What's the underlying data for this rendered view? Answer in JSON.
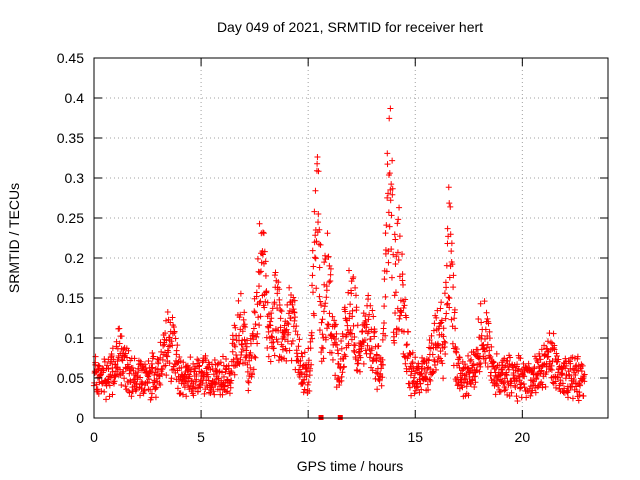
{
  "chart_data": {
    "type": "scatter",
    "title": "Day 049 of 2021, SRMTID for receiver hert",
    "xlabel": "GPS time / hours",
    "ylabel": "SRMTID / TECUs",
    "xlim": [
      0,
      24
    ],
    "ylim": [
      0,
      0.45
    ],
    "x_ticks": [
      "0",
      "5",
      "10",
      "15",
      "20"
    ],
    "x_tick_values": [
      0,
      5,
      10,
      15,
      20
    ],
    "y_ticks": [
      "0",
      "0.05",
      "0.1",
      "0.15",
      "0.2",
      "0.25",
      "0.3",
      "0.35",
      "0.4",
      "0.45"
    ],
    "y_tick_values": [
      0,
      0.05,
      0.1,
      0.15,
      0.2,
      0.25,
      0.3,
      0.35,
      0.4,
      0.45
    ],
    "grid": true,
    "marker": "plus",
    "series_color": "#ff0000",
    "x_range_of_points": [
      0,
      22.9
    ],
    "baseline_level": 0.055,
    "peaks": [
      {
        "center": 1.2,
        "max": 0.11
      },
      {
        "center": 3.5,
        "max": 0.13
      },
      {
        "center": 6.8,
        "max": 0.15
      },
      {
        "center": 7.8,
        "max": 0.24
      },
      {
        "center": 8.5,
        "max": 0.18
      },
      {
        "center": 9.2,
        "max": 0.16
      },
      {
        "center": 10.4,
        "max": 0.345
      },
      {
        "center": 10.9,
        "max": 0.22
      },
      {
        "center": 12.0,
        "max": 0.2
      },
      {
        "center": 12.8,
        "max": 0.16
      },
      {
        "center": 13.8,
        "max": 0.4
      },
      {
        "center": 14.2,
        "max": 0.25
      },
      {
        "center": 16.6,
        "max": 0.28
      },
      {
        "center": 16.1,
        "max": 0.15
      },
      {
        "center": 18.2,
        "max": 0.15
      },
      {
        "center": 21.3,
        "max": 0.1
      }
    ],
    "gap_markers_x": [
      10.6,
      11.5
    ]
  }
}
